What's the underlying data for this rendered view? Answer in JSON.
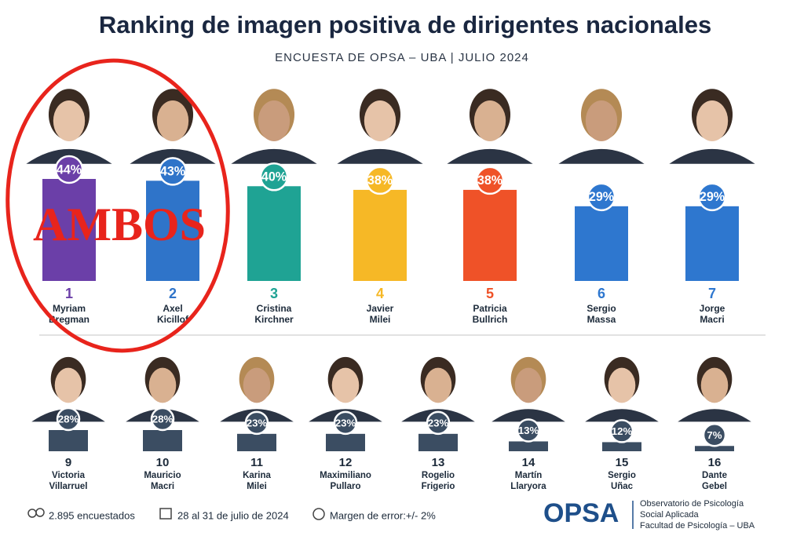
{
  "header": {
    "title": "Ranking de imagen positiva de dirigentes nacionales",
    "subtitle": "ENCUESTA DE OPSA – UBA | JULIO 2024"
  },
  "annotation": "AMBOS",
  "chart_data": [
    {
      "type": "bar",
      "ranks": [
        1,
        2,
        3,
        4,
        5,
        6,
        7
      ],
      "categories": [
        [
          "Myriam",
          "Bregman"
        ],
        [
          "Axel",
          "Kicillof"
        ],
        [
          "Cristina",
          "Kirchner"
        ],
        [
          "Javier",
          "Milei"
        ],
        [
          "Patricia",
          "Bullrich"
        ],
        [
          "Sergio",
          "Massa"
        ],
        [
          "Jorge",
          "Macri"
        ]
      ],
      "values": [
        44,
        43,
        40,
        38,
        38,
        29,
        29
      ],
      "value_labels": [
        "44%",
        "43%",
        "40%",
        "38%",
        "38%",
        "29%",
        "29%"
      ],
      "colors": [
        "#6b3fa8",
        "#2f74c9",
        "#1fa394",
        "#f6b826",
        "#ef5228",
        "#2e77cf",
        "#2e77cf"
      ],
      "ylim": [
        -12,
        44
      ]
    },
    {
      "type": "bar",
      "ranks": [
        9,
        10,
        11,
        12,
        13,
        14,
        15,
        16
      ],
      "categories": [
        [
          "Victoria",
          "Villarruel"
        ],
        [
          "Mauricio",
          "Macri"
        ],
        [
          "Karina",
          "Milei"
        ],
        [
          "Maximiliano",
          "Pullaro"
        ],
        [
          "Rogelio",
          "Frigerio"
        ],
        [
          "Martín",
          "Llaryora"
        ],
        [
          "Sergio",
          "Uñac"
        ],
        [
          "Dante",
          "Gebel"
        ]
      ],
      "values": [
        28,
        28,
        23,
        23,
        23,
        13,
        12,
        7
      ],
      "value_labels": [
        "28%",
        "28%",
        "23%",
        "23%",
        "23%",
        "13%",
        "12%",
        "7%"
      ],
      "color": "#3b4d62",
      "ylim": [
        0,
        28
      ]
    }
  ],
  "footer": {
    "respondents": "2.895 encuestados",
    "dates": "28 al 31 de julio de 2024",
    "margin": "Margen de error:+/- 2%",
    "logo": "OPSA",
    "org": [
      "Observatorio de Psicología",
      "Social Aplicada",
      "Facultad de Psicología – UBA"
    ]
  }
}
